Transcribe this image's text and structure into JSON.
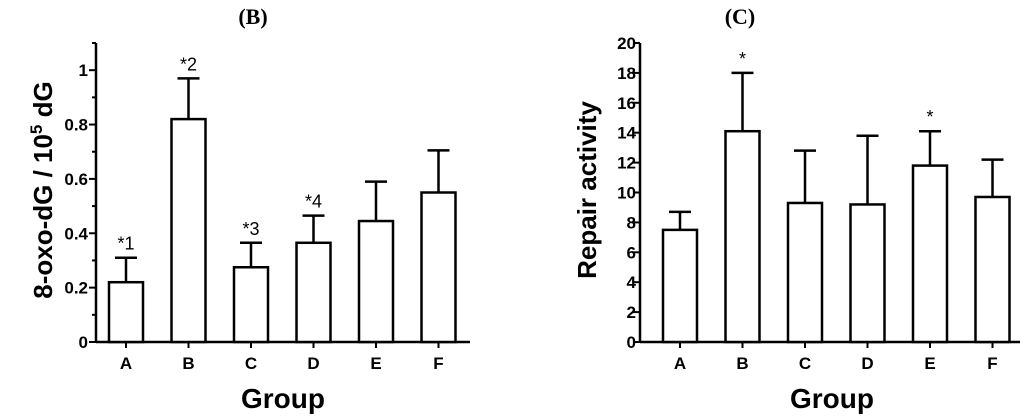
{
  "chart_data": [
    {
      "type": "bar",
      "panel_label": "(B)",
      "categories": [
        "A",
        "B",
        "C",
        "D",
        "E",
        "F"
      ],
      "values": [
        0.22,
        0.82,
        0.275,
        0.365,
        0.445,
        0.55
      ],
      "error_upper": [
        0.31,
        0.97,
        0.365,
        0.465,
        0.59,
        0.705
      ],
      "annotations": [
        "*1",
        "*2",
        "*3",
        "*4",
        "",
        ""
      ],
      "xlabel": "Group",
      "ylabel_main": "8-oxo-dG / 10",
      "ylabel_sup": "5",
      "ylabel_tail": " dG",
      "ylim": [
        0,
        1.1
      ],
      "yticks": [
        0,
        0.2,
        0.4,
        0.6,
        0.8,
        1
      ],
      "ytick_labels": [
        "0",
        "0.2",
        "0.4",
        "0.6",
        "0.8",
        "1"
      ],
      "minor_ticks": true,
      "grid": false
    },
    {
      "type": "bar",
      "panel_label": "(C)",
      "categories": [
        "A",
        "B",
        "C",
        "D",
        "E",
        "F"
      ],
      "values": [
        7.5,
        14.1,
        9.3,
        9.2,
        11.8,
        9.7
      ],
      "error_upper": [
        8.7,
        18.0,
        12.8,
        13.8,
        14.1,
        12.2
      ],
      "annotations": [
        "",
        "*",
        "",
        "",
        "*",
        ""
      ],
      "xlabel": "Group",
      "ylabel": "Repair activity",
      "ylim": [
        0,
        20
      ],
      "yticks": [
        0,
        2,
        4,
        6,
        8,
        10,
        12,
        14,
        16,
        18,
        20
      ],
      "ytick_labels": [
        "0",
        "2",
        "4",
        "6",
        "8",
        "10",
        "12",
        "14",
        "16",
        "18",
        "20"
      ],
      "minor_ticks": false,
      "grid": false
    }
  ]
}
